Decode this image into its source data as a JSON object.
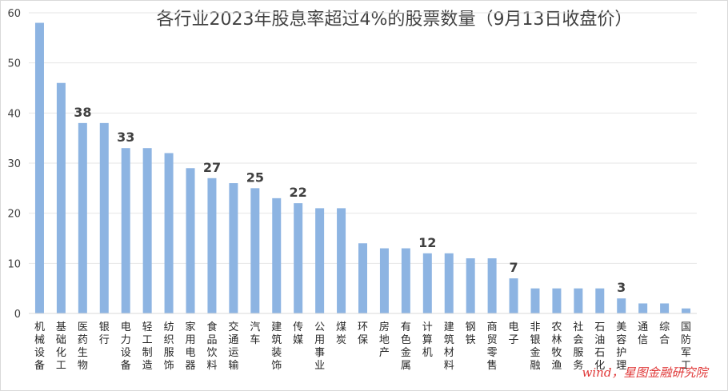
{
  "chart_data": {
    "type": "bar",
    "title": "各行业2023年股息率超过4%的股票数量（9月13日收盘价）",
    "xlabel": "",
    "ylabel": "",
    "ylim": [
      0,
      60
    ],
    "yticks": [
      0,
      10,
      20,
      30,
      40,
      50,
      60
    ],
    "grid": true,
    "legend": "none",
    "bar_color": "#8db4e2",
    "categories": [
      "机械设备",
      "基础化工",
      "医药生物",
      "银行",
      "电力设备",
      "轻工制造",
      "纺织服饰",
      "家用电器",
      "食品饮料",
      "交通运输",
      "汽车",
      "建筑装饰",
      "传媒",
      "公用事业",
      "煤炭",
      "环保",
      "房地产",
      "有色金属",
      "计算机",
      "建筑材料",
      "钢铁",
      "商贸零售",
      "电子",
      "非银金融",
      "农林牧渔",
      "社会服务",
      "石油石化",
      "美容护理",
      "通信",
      "综合",
      "国防军工"
    ],
    "values": [
      58,
      46,
      38,
      38,
      33,
      33,
      32,
      29,
      27,
      26,
      25,
      23,
      22,
      21,
      21,
      14,
      13,
      13,
      12,
      12,
      11,
      11,
      7,
      5,
      5,
      5,
      5,
      3,
      2,
      2,
      1
    ],
    "data_labels": [
      {
        "category": "医药生物",
        "text": "38"
      },
      {
        "category": "电力设备",
        "text": "33"
      },
      {
        "category": "食品饮料",
        "text": "27"
      },
      {
        "category": "汽车",
        "text": "25"
      },
      {
        "category": "传媒",
        "text": "22"
      },
      {
        "category": "计算机",
        "text": "12"
      },
      {
        "category": "电子",
        "text": "7"
      },
      {
        "category": "美容护理",
        "text": "3"
      }
    ]
  },
  "watermark": {
    "text": "wind，星图金融研究院"
  }
}
